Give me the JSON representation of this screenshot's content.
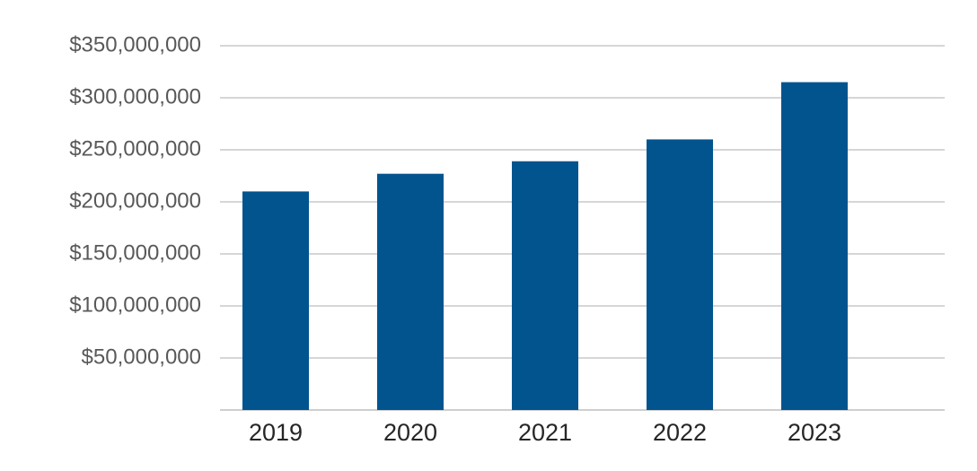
{
  "chart_data": {
    "type": "bar",
    "categories": [
      "2019",
      "2020",
      "2021",
      "2022",
      "2023"
    ],
    "values": [
      210000000,
      227000000,
      239000000,
      260000000,
      315000000
    ],
    "color": "#02548f",
    "ylim": [
      0,
      350000000
    ],
    "yticks": [
      {
        "value": 50000000,
        "label": "$50,000,000"
      },
      {
        "value": 100000000,
        "label": "$100,000,000"
      },
      {
        "value": 150000000,
        "label": "$150,000,000"
      },
      {
        "value": 200000000,
        "label": "$200,000,000"
      },
      {
        "value": 250000000,
        "label": "$250,000,000"
      },
      {
        "value": 300000000,
        "label": "$300,000,000"
      },
      {
        "value": 350000000,
        "label": "$350,000,000"
      }
    ],
    "grid": true
  }
}
